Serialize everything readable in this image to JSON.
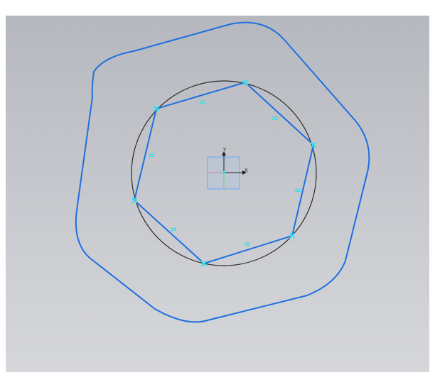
{
  "sketch": {
    "colors": {
      "background_top": "#b6b8bf",
      "background_bottom": "#d6d7da",
      "geometry": "#1f6fe0",
      "construction_circle": "#2b2b2b",
      "constraint": "#35e0e6",
      "axis": "#202020",
      "origin_box": "#6aa8ff",
      "origin_box_fill": "#9bc2f5"
    },
    "origin": {
      "x_axis_label": "X",
      "y_axis_label": "Y"
    },
    "constraints": {
      "equal_symbol": "="
    }
  }
}
